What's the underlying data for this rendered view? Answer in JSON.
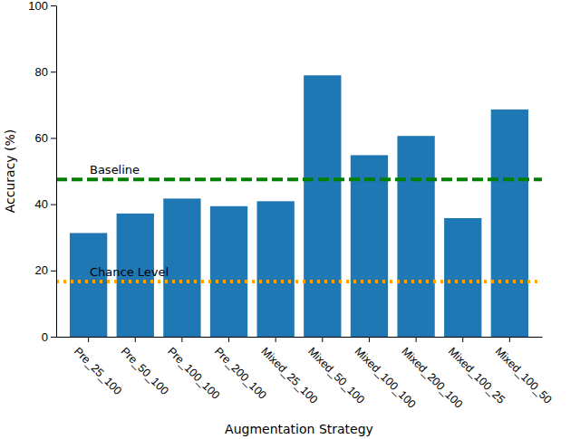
{
  "chart_data": {
    "type": "bar",
    "categories": [
      "Pre_25_100",
      "Pre_50_100",
      "Pre_100_100",
      "Pre_200_100",
      "Mixed_25_100",
      "Mixed_50_100",
      "Mixed_100_100",
      "Mixed_200_100",
      "Mixed_100_25",
      "Mixed_100_50"
    ],
    "values": [
      31.3,
      37.2,
      41.7,
      39.4,
      40.9,
      78.9,
      54.8,
      60.6,
      35.8,
      68.6
    ],
    "color": "#1f77b4",
    "x_label": "Augmentation Strategy",
    "y_label": "Accuracy (%)",
    "ylim": [
      0,
      100
    ],
    "yticks": [
      0,
      20,
      40,
      60,
      80,
      100
    ],
    "grid": false,
    "reference_lines": [
      {
        "label": "Baseline",
        "value": 47.5,
        "color": "#008000",
        "line_style": "dashed"
      },
      {
        "label": "Chance Level",
        "value": 16.7,
        "color": "#ffa500",
        "line_style": "dotted"
      }
    ]
  }
}
